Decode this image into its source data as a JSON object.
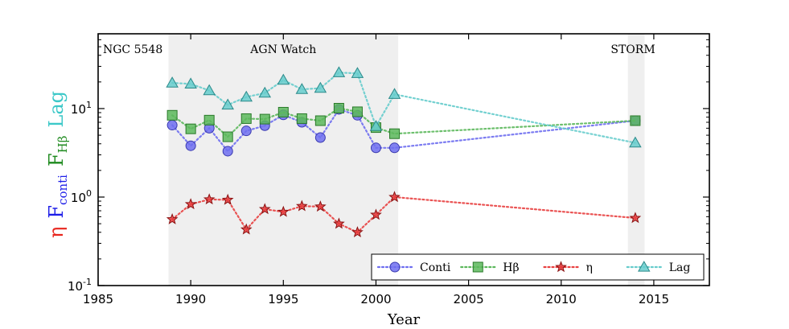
{
  "chart_data": {
    "type": "line",
    "log_y": true,
    "title": "",
    "xlabel": "Year",
    "xlim": [
      1985,
      2018
    ],
    "ylim": [
      0.1,
      70
    ],
    "x_ticks": [
      1985,
      1990,
      1995,
      2000,
      2005,
      2010,
      2015
    ],
    "y_ticks": [
      {
        "value": 0.1,
        "base": "10",
        "exp": "-1"
      },
      {
        "value": 1,
        "base": "10",
        "exp": "0"
      },
      {
        "value": 10,
        "base": "10",
        "exp": "1"
      }
    ],
    "ylabel_parts": [
      {
        "text": "η",
        "sub": "",
        "color": "#e8261e"
      },
      {
        "text": "F",
        "sub": "conti",
        "color": "#1e1ee8"
      },
      {
        "text": "F",
        "sub": "Hβ",
        "color": "#1e8a1e"
      },
      {
        "text": "Lag",
        "sub": "",
        "color": "#3cc8c8"
      }
    ],
    "shaded_regions": [
      {
        "label": "AGN Watch",
        "x_start": 1988.8,
        "x_end": 2001.2
      },
      {
        "label": "STORM",
        "x_start": 2013.6,
        "x_end": 2014.5
      }
    ],
    "object_label": "NGC 5548",
    "legend_position": "lower-right",
    "series": [
      {
        "name": "Conti",
        "marker": "circle",
        "fill": "#6e6ef0",
        "stroke": "#3a3ab0",
        "line": "#6e6ef0",
        "x": [
          1989,
          1990,
          1991,
          1992,
          1993,
          1994,
          1995,
          1996,
          1997,
          1998,
          1999,
          2000,
          2001,
          2014
        ],
        "values": [
          6.5,
          3.8,
          6.0,
          3.3,
          5.6,
          6.4,
          8.5,
          7.0,
          4.7,
          9.8,
          8.4,
          3.6,
          3.6,
          7.3
        ]
      },
      {
        "name": "Hβ",
        "marker": "square",
        "fill": "#5cb85c",
        "stroke": "#2a7a2a",
        "line": "#5cb85c",
        "x": [
          1989,
          1990,
          1991,
          1992,
          1993,
          1994,
          1995,
          1996,
          1997,
          1998,
          1999,
          2000,
          2001,
          2014
        ],
        "values": [
          8.4,
          5.9,
          7.4,
          4.8,
          7.7,
          7.6,
          9.1,
          7.7,
          7.3,
          10.1,
          9.2,
          6.1,
          5.2,
          7.3
        ]
      },
      {
        "name": "η",
        "marker": "star",
        "fill": "#e8383a",
        "stroke": "#8a1010",
        "line": "#e84040",
        "x": [
          1989,
          1990,
          1991,
          1992,
          1993,
          1994,
          1995,
          1996,
          1997,
          1998,
          1999,
          2000,
          2001,
          2014
        ],
        "values": [
          0.56,
          0.83,
          0.94,
          0.93,
          0.43,
          0.73,
          0.68,
          0.79,
          0.78,
          0.5,
          0.4,
          0.63,
          1.0,
          0.58
        ]
      },
      {
        "name": "Lag",
        "marker": "triangle",
        "fill": "#66cccc",
        "stroke": "#2a8a8a",
        "line": "#66cccc",
        "x": [
          1989,
          1990,
          1991,
          1992,
          1993,
          1994,
          1995,
          1996,
          1997,
          1998,
          1999,
          2000,
          2001,
          2014
        ],
        "values": [
          19.5,
          19.0,
          16.0,
          11.0,
          13.5,
          15.0,
          21.0,
          16.5,
          17.0,
          25.5,
          25.0,
          6.3,
          14.5,
          4.1
        ]
      }
    ]
  }
}
